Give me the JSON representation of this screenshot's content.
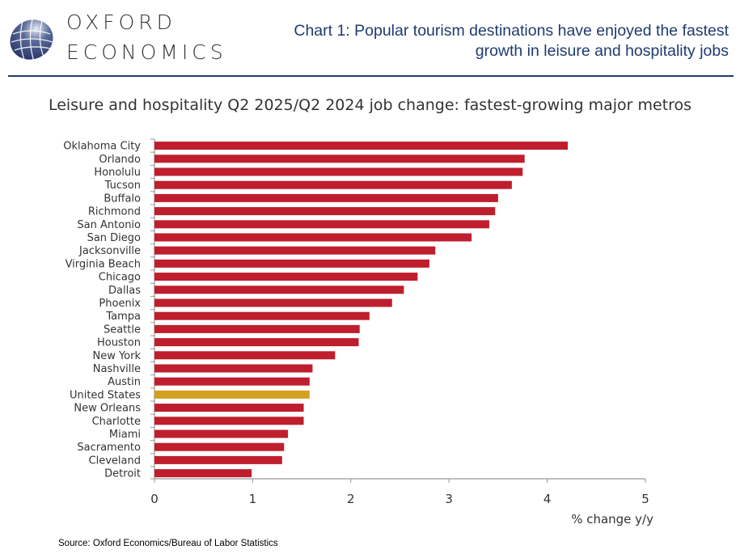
{
  "logo": {
    "line1": "OXFORD",
    "line2": "ECONOMICS"
  },
  "headline": "Chart 1: Popular tourism destinations have enjoyed the fastest growth in leisure and hospitality jobs",
  "source": "Source: Oxford Economics/Bureau of Labor Statistics",
  "colors": {
    "bar": "#be1e2d",
    "highlight": "#d4a020",
    "brand": "#1f3b6e"
  },
  "chart_data": {
    "type": "bar",
    "orientation": "horizontal",
    "title": "Leisure and hospitality Q2 2025/Q2 2024 job change: fastest-growing major metros",
    "xlabel": "% change y/y",
    "ylabel": "",
    "xlim": [
      0,
      5
    ],
    "xticks": [
      "0",
      "1",
      "2",
      "3",
      "4",
      "5"
    ],
    "grid": false,
    "highlighted_category": "United States",
    "categories": [
      "Oklahoma City",
      "Orlando",
      "Honolulu",
      "Tucson",
      "Buffalo",
      "Richmond",
      "San Antonio",
      "San Diego",
      "Jacksonville",
      "Virginia Beach",
      "Chicago",
      "Dallas",
      "Phoenix",
      "Tampa",
      "Seattle",
      "Houston",
      "New York",
      "Nashville",
      "Austin",
      "United States",
      "New Orleans",
      "Charlotte",
      "Miami",
      "Sacramento",
      "Cleveland",
      "Detroit"
    ],
    "values": [
      4.21,
      3.77,
      3.75,
      3.64,
      3.5,
      3.47,
      3.41,
      3.23,
      2.86,
      2.8,
      2.68,
      2.54,
      2.42,
      2.19,
      2.09,
      2.08,
      1.84,
      1.61,
      1.58,
      1.58,
      1.52,
      1.52,
      1.36,
      1.32,
      1.3,
      0.99
    ]
  }
}
